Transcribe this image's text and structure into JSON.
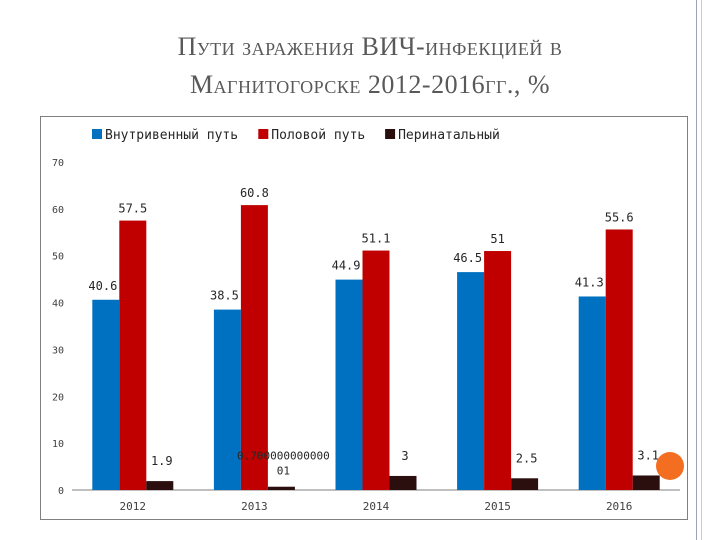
{
  "title_line1": "Пути заражения ВИЧ-инфекцией в",
  "title_line2": "Магнитогорске 2012-2016гг., %",
  "colors": {
    "series1": "#0070c0",
    "series2": "#c00000",
    "series3": "#2b0f0f",
    "accent": "#f36e21"
  },
  "chart_data": {
    "type": "bar",
    "title": "",
    "xlabel": "",
    "ylabel": "",
    "ylim": [
      0,
      70
    ],
    "yticks": [
      0,
      10,
      20,
      30,
      40,
      50,
      60,
      70
    ],
    "legend_position": "top",
    "grid": false,
    "categories": [
      "2012",
      "2013",
      "2014",
      "2015",
      "2016"
    ],
    "series": [
      {
        "name": "Внутривенный путь",
        "values": [
          40.6,
          38.5,
          44.9,
          46.5,
          41.3
        ],
        "labels": [
          "40.6",
          "38.5",
          "44.9",
          "46.5",
          "41.3"
        ]
      },
      {
        "name": "Половой путь",
        "values": [
          57.5,
          60.8,
          51.1,
          51,
          55.6
        ],
        "labels": [
          "57.5",
          "60.8",
          "51.1",
          "51",
          "55.6"
        ]
      },
      {
        "name": "Перинатальный",
        "values": [
          1.9,
          0.7,
          3,
          2.5,
          3.1
        ],
        "labels": [
          "1.9",
          "0.70000000000001",
          "3",
          "2.5",
          "3.1"
        ]
      }
    ]
  }
}
